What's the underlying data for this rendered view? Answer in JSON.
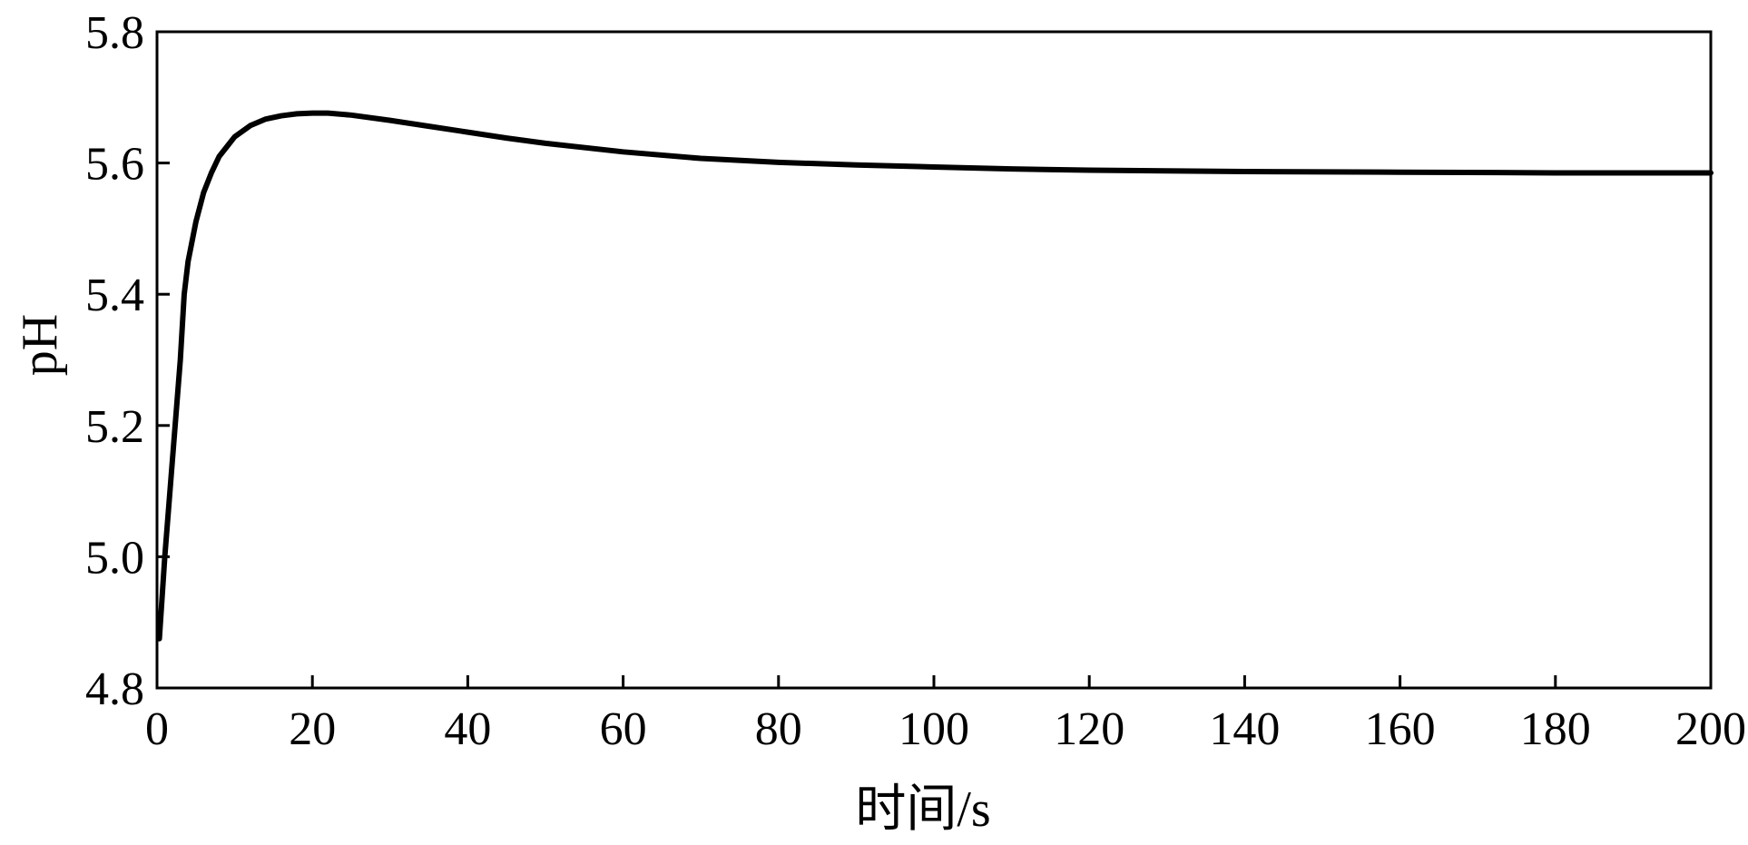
{
  "chart_data": {
    "type": "line",
    "title": "",
    "xlabel": "时间/s",
    "ylabel": "pH",
    "xlim": [
      0,
      200
    ],
    "ylim": [
      4.8,
      5.8
    ],
    "xticks": [
      "0",
      "20",
      "40",
      "60",
      "80",
      "100",
      "120",
      "140",
      "160",
      "180",
      "200"
    ],
    "yticks": [
      "4.8",
      "5.0",
      "5.2",
      "5.4",
      "5.6",
      "5.8"
    ],
    "grid": false,
    "legend": "none",
    "series": [
      {
        "color": "#000000",
        "x": [
          0.3,
          1,
          2,
          3,
          3.5,
          4,
          4.5,
          5,
          6,
          7,
          8,
          10,
          12,
          14,
          16,
          18,
          20,
          22,
          25,
          30,
          35,
          40,
          45,
          50,
          60,
          70,
          80,
          90,
          100,
          110,
          120,
          140,
          160,
          180,
          200
        ],
        "y": [
          4.875,
          5.0,
          5.15,
          5.3,
          5.4,
          5.45,
          5.48,
          5.51,
          5.555,
          5.585,
          5.61,
          5.64,
          5.657,
          5.667,
          5.672,
          5.675,
          5.676,
          5.676,
          5.673,
          5.665,
          5.656,
          5.647,
          5.638,
          5.63,
          5.617,
          5.607,
          5.601,
          5.597,
          5.594,
          5.591,
          5.589,
          5.587,
          5.586,
          5.585,
          5.585
        ]
      }
    ]
  }
}
